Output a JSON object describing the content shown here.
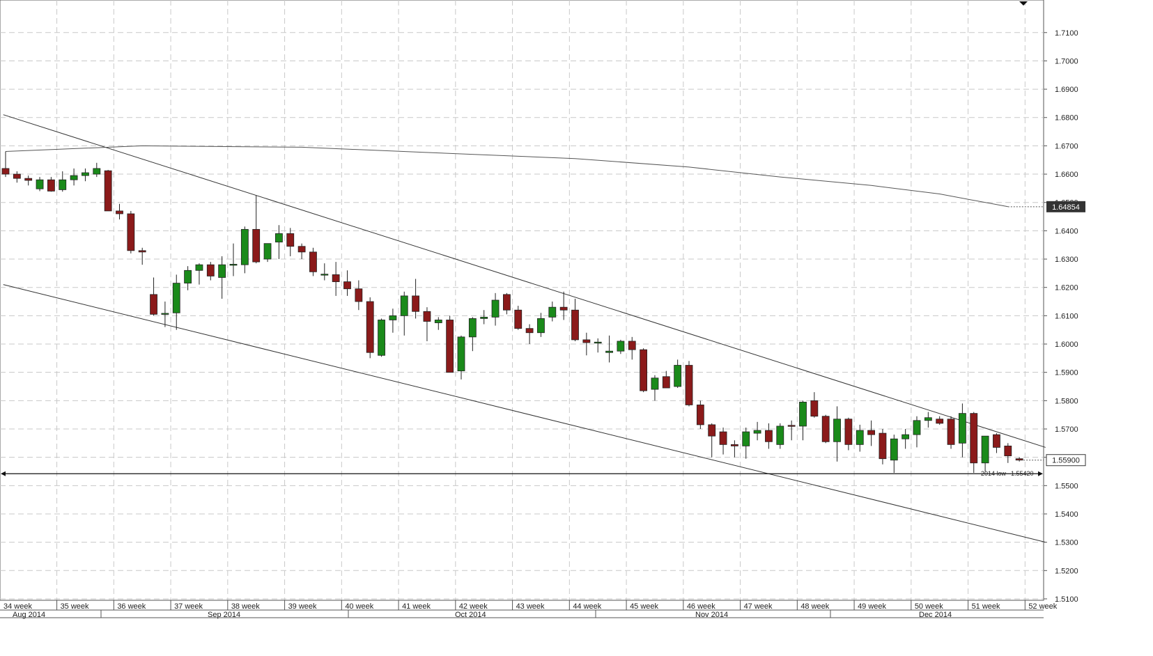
{
  "chart_data": {
    "type": "candlestick",
    "title": "",
    "xlabel": "",
    "ylabel": "",
    "ylim": [
      1.5095,
      1.7215
    ],
    "y_ticks": [
      "1.7100",
      "1.7000",
      "1.6900",
      "1.6800",
      "1.6700",
      "1.6600",
      "1.6500",
      "1.6400",
      "1.6300",
      "1.6200",
      "1.6100",
      "1.6000",
      "1.5900",
      "1.5800",
      "1.5700",
      "1.5600",
      "1.5500",
      "1.5400",
      "1.5300",
      "1.5200",
      "1.5100"
    ],
    "grid": true,
    "week_labels": [
      "34 week",
      "35 week",
      "36 week",
      "37 week",
      "38 week",
      "39 week",
      "40 week",
      "41 week",
      "42 week",
      "43 week",
      "44 week",
      "45 week",
      "46 week",
      "47 week",
      "48 week",
      "49 week",
      "50 week",
      "51 week",
      "52 week"
    ],
    "month_labels": [
      "Aug 2014",
      "Sep 2014",
      "Oct 2014",
      "Nov 2014",
      "Dec 2014"
    ],
    "up_color": "#1a8a1a",
    "down_color": "#8b1a1a",
    "candles": [
      [
        1.662,
        1.668,
        1.659,
        1.66
      ],
      [
        1.66,
        1.661,
        1.657,
        1.6585
      ],
      [
        1.6585,
        1.6595,
        1.656,
        1.6578
      ],
      [
        1.6548,
        1.659,
        1.654,
        1.658
      ],
      [
        1.658,
        1.659,
        1.6538,
        1.654
      ],
      [
        1.6545,
        1.661,
        1.6538,
        1.658
      ],
      [
        1.658,
        1.662,
        1.656,
        1.6595
      ],
      [
        1.6595,
        1.662,
        1.6575,
        1.6605
      ],
      [
        1.66,
        1.664,
        1.659,
        1.662
      ],
      [
        1.6612,
        1.6615,
        1.647,
        1.647
      ],
      [
        1.647,
        1.6495,
        1.644,
        1.646
      ],
      [
        1.646,
        1.647,
        1.632,
        1.633
      ],
      [
        1.633,
        1.634,
        1.628,
        1.6325
      ],
      [
        1.6175,
        1.6235,
        1.61,
        1.6105
      ],
      [
        1.6105,
        1.615,
        1.606,
        1.6108
      ],
      [
        1.611,
        1.6245,
        1.605,
        1.6215
      ],
      [
        1.6215,
        1.6275,
        1.619,
        1.626
      ],
      [
        1.626,
        1.6285,
        1.621,
        1.628
      ],
      [
        1.628,
        1.629,
        1.6225,
        1.624
      ],
      [
        1.6235,
        1.631,
        1.616,
        1.628
      ],
      [
        1.628,
        1.6355,
        1.624,
        1.628
      ],
      [
        1.628,
        1.6415,
        1.625,
        1.6405
      ],
      [
        1.6405,
        1.6525,
        1.6285,
        1.629
      ],
      [
        1.63,
        1.635,
        1.629,
        1.6355
      ],
      [
        1.636,
        1.642,
        1.63,
        1.639
      ],
      [
        1.639,
        1.641,
        1.631,
        1.6345
      ],
      [
        1.6345,
        1.6355,
        1.63,
        1.6325
      ],
      [
        1.6325,
        1.634,
        1.624,
        1.6255
      ],
      [
        1.6245,
        1.6285,
        1.6225,
        1.6245
      ],
      [
        1.6245,
        1.629,
        1.617,
        1.622
      ],
      [
        1.622,
        1.626,
        1.617,
        1.6195
      ],
      [
        1.6195,
        1.6225,
        1.612,
        1.615
      ],
      [
        1.615,
        1.6165,
        1.595,
        1.597
      ],
      [
        1.596,
        1.609,
        1.5955,
        1.6085
      ],
      [
        1.6085,
        1.6125,
        1.604,
        1.61
      ],
      [
        1.61,
        1.6185,
        1.603,
        1.617
      ],
      [
        1.617,
        1.623,
        1.609,
        1.6115
      ],
      [
        1.6115,
        1.613,
        1.601,
        1.608
      ],
      [
        1.6075,
        1.6095,
        1.605,
        1.6085
      ],
      [
        1.6085,
        1.61,
        1.59,
        1.59
      ],
      [
        1.5905,
        1.603,
        1.5875,
        1.6025
      ],
      [
        1.6025,
        1.6095,
        1.5975,
        1.609
      ],
      [
        1.609,
        1.612,
        1.607,
        1.6095
      ],
      [
        1.6095,
        1.618,
        1.6065,
        1.6155
      ],
      [
        1.6175,
        1.618,
        1.6105,
        1.612
      ],
      [
        1.612,
        1.6135,
        1.605,
        1.6055
      ],
      [
        1.6055,
        1.607,
        1.6,
        1.604
      ],
      [
        1.604,
        1.611,
        1.6025,
        1.609
      ],
      [
        1.6095,
        1.615,
        1.608,
        1.613
      ],
      [
        1.613,
        1.6185,
        1.6085,
        1.612
      ],
      [
        1.612,
        1.616,
        1.601,
        1.6015
      ],
      [
        1.6015,
        1.604,
        1.596,
        1.6005
      ],
      [
        1.6005,
        1.602,
        1.597,
        1.6005
      ],
      [
        1.597,
        1.603,
        1.5935,
        1.5975
      ],
      [
        1.5975,
        1.6015,
        1.5965,
        1.601
      ],
      [
        1.601,
        1.6025,
        1.5945,
        1.598
      ],
      [
        1.598,
        1.5985,
        1.583,
        1.5835
      ],
      [
        1.584,
        1.589,
        1.58,
        1.588
      ],
      [
        1.5885,
        1.5905,
        1.585,
        1.5845
      ],
      [
        1.585,
        1.5945,
        1.5845,
        1.5925
      ],
      [
        1.5925,
        1.594,
        1.578,
        1.5785
      ],
      [
        1.5785,
        1.58,
        1.57,
        1.5715
      ],
      [
        1.5715,
        1.572,
        1.56,
        1.5675
      ],
      [
        1.569,
        1.5705,
        1.561,
        1.5645
      ],
      [
        1.5645,
        1.566,
        1.56,
        1.564
      ],
      [
        1.564,
        1.5705,
        1.5595,
        1.569
      ],
      [
        1.5685,
        1.5725,
        1.566,
        1.5695
      ],
      [
        1.5695,
        1.572,
        1.563,
        1.5655
      ],
      [
        1.5645,
        1.572,
        1.563,
        1.571
      ],
      [
        1.5712,
        1.573,
        1.566,
        1.571
      ],
      [
        1.571,
        1.58,
        1.566,
        1.5795
      ],
      [
        1.58,
        1.583,
        1.574,
        1.5745
      ],
      [
        1.5745,
        1.575,
        1.565,
        1.5655
      ],
      [
        1.5655,
        1.578,
        1.5585,
        1.5735
      ],
      [
        1.5735,
        1.574,
        1.5625,
        1.5645
      ],
      [
        1.5645,
        1.5715,
        1.562,
        1.5695
      ],
      [
        1.5695,
        1.573,
        1.564,
        1.568
      ],
      [
        1.5685,
        1.57,
        1.5575,
        1.5595
      ],
      [
        1.559,
        1.568,
        1.5545,
        1.5665
      ],
      [
        1.5665,
        1.57,
        1.563,
        1.568
      ],
      [
        1.568,
        1.5745,
        1.5635,
        1.573
      ],
      [
        1.573,
        1.576,
        1.5705,
        1.574
      ],
      [
        1.5735,
        1.5745,
        1.5715,
        1.572
      ],
      [
        1.5735,
        1.5745,
        1.563,
        1.5645
      ],
      [
        1.565,
        1.579,
        1.56,
        1.5755
      ],
      [
        1.5755,
        1.576,
        1.5545,
        1.558
      ],
      [
        1.558,
        1.5675,
        1.555,
        1.5675
      ],
      [
        1.568,
        1.5685,
        1.5615,
        1.5635
      ],
      [
        1.564,
        1.565,
        1.558,
        1.5605
      ],
      [
        1.5595,
        1.56,
        1.5585,
        1.559
      ]
    ],
    "moving_average": [
      [
        0,
        1.668
      ],
      [
        12,
        1.67
      ],
      [
        26,
        1.6695
      ],
      [
        38,
        1.6675
      ],
      [
        50,
        1.6655
      ],
      [
        60,
        1.6625
      ],
      [
        68,
        1.659
      ],
      [
        76,
        1.656
      ],
      [
        82,
        1.653
      ],
      [
        88,
        1.6485
      ]
    ],
    "channel_upper": [
      [
        -0.2,
        1.681
      ],
      [
        91.3,
        1.5635
      ]
    ],
    "channel_lower": [
      [
        -0.2,
        1.621
      ],
      [
        91.3,
        1.53
      ]
    ],
    "support_line": 1.5542,
    "annotations": [
      {
        "label": "2014 low",
        "value": "1.55420"
      }
    ],
    "price_tags": {
      "last_price": "1.55900",
      "ma_value": "1.64854"
    }
  }
}
